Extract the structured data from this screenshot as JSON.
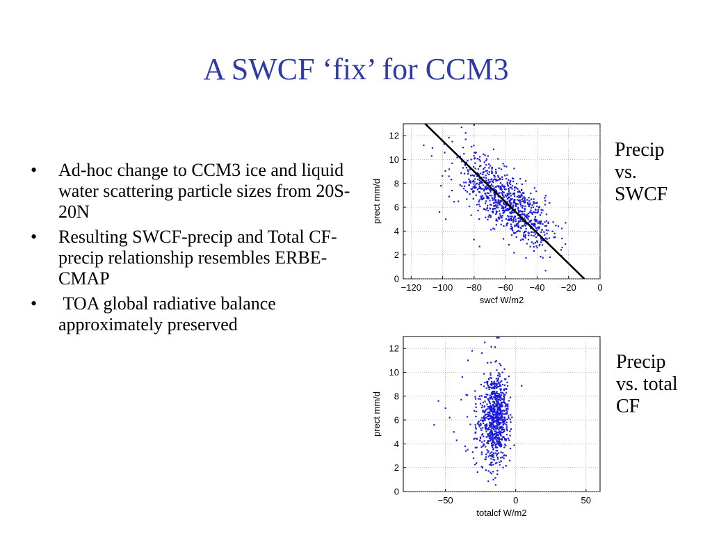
{
  "title": "A SWCF ‘fix’ for CCM3",
  "bullets": [
    "Ad-hoc change to CCM3 ice and liquid water scattering particle sizes from 20S-20N",
    "Resulting SWCF-precip and Total CF-precip relationship resembles ERBE-CMAP",
    " TOA global radiative balance approximately preserved"
  ],
  "bullet_glyph": "•",
  "captions": [
    "Precip\nvs.\nSWCF",
    "Precip\nvs. total\nCF"
  ],
  "colors": {
    "title": "#2f3aa4",
    "points": "#1a1adb",
    "fit_line": "#000000",
    "grid": "#9a9a9a"
  },
  "chart_data": [
    {
      "type": "scatter",
      "xlabel": "swcf W/m2",
      "ylabel": "prect mm/d",
      "xlim": [
        -125,
        0
      ],
      "ylim": [
        0,
        13
      ],
      "xticks": [
        -120,
        -100,
        -80,
        -60,
        -40,
        -20,
        0
      ],
      "yticks": [
        0,
        2,
        4,
        6,
        8,
        10,
        12
      ],
      "grid": "dotted",
      "fit_line": {
        "x": [
          -115,
          -10
        ],
        "y": [
          13.5,
          0
        ]
      },
      "points": {
        "approx_count": 900,
        "clusters": [
          {
            "n": 620,
            "x_mean": -58,
            "x_sd": 12,
            "y_mean": 6.2,
            "y_sd": 1.6,
            "corr": -0.65
          },
          {
            "n": 160,
            "x_mean": -75,
            "x_sd": 10,
            "y_mean": 8.3,
            "y_sd": 1.5,
            "corr": -0.4
          },
          {
            "n": 90,
            "x_mean": -42,
            "x_sd": 8,
            "y_mean": 4.3,
            "y_sd": 1.3,
            "corr": -0.3
          }
        ],
        "outliers": [
          [
            -112,
            11.2
          ],
          [
            -107,
            10.3
          ],
          [
            -102,
            5.6
          ],
          [
            -98,
            5.0
          ],
          [
            -94,
            7.4
          ],
          [
            -90,
            6.5
          ],
          [
            -96,
            8.6
          ],
          [
            -101,
            7.8
          ],
          [
            -88,
            12.7
          ],
          [
            -80,
            12.9
          ]
        ]
      }
    },
    {
      "type": "scatter",
      "xlabel": "totalcf W/m2",
      "ylabel": "prect mm/d",
      "xlim": [
        -80,
        60
      ],
      "ylim": [
        0,
        13
      ],
      "xticks": [
        -50,
        0,
        50
      ],
      "yticks": [
        0,
        2,
        4,
        6,
        8,
        10,
        12
      ],
      "grid": "dotted",
      "points": {
        "approx_count": 900,
        "clusters": [
          {
            "n": 700,
            "x_mean": -14,
            "x_sd": 4.5,
            "y_mean": 6.2,
            "y_sd": 1.9,
            "corr": 0.0
          },
          {
            "n": 140,
            "x_mean": -22,
            "x_sd": 6,
            "y_mean": 5.5,
            "y_sd": 2.0,
            "corr": 0.1
          }
        ],
        "outliers": [
          [
            -58,
            5.6
          ],
          [
            -55,
            7.6
          ],
          [
            -50,
            7.0
          ],
          [
            -47,
            6.2
          ],
          [
            -44,
            5.0
          ],
          [
            -42,
            4.3
          ],
          [
            -38,
            9.6
          ],
          [
            -34,
            11.0
          ],
          [
            -31,
            11.8
          ],
          [
            -36,
            3.8
          ],
          [
            -30,
            2.8
          ],
          [
            -18,
            1.6
          ],
          [
            -12,
            12.9
          ],
          [
            -22,
            12.5
          ]
        ]
      }
    }
  ]
}
